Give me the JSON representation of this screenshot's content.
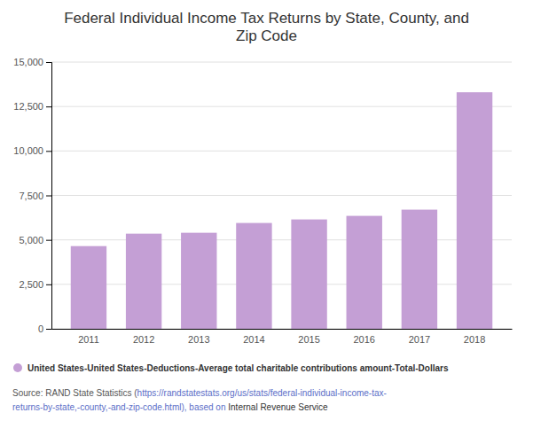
{
  "chart_data": {
    "type": "bar",
    "title": "Federal Individual Income Tax Returns by State, County, and\nZip Code",
    "categories": [
      "2011",
      "2012",
      "2013",
      "2014",
      "2015",
      "2016",
      "2017",
      "2018"
    ],
    "series": [
      {
        "name": "United States-United States-Deductions-Average total charitable contributions amount-Total-Dollars",
        "color": "#c49fd5",
        "values": [
          4650,
          5350,
          5400,
          5950,
          6150,
          6350,
          6700,
          13300
        ]
      }
    ],
    "ylim": [
      0,
      15000
    ],
    "yticks": [
      0,
      {
        "value": 2500,
        "label": "2,500"
      },
      {
        "value": 5000,
        "label": "5,000"
      },
      {
        "value": 7500,
        "label": "7,500"
      },
      {
        "value": 10000,
        "label": "10,000"
      },
      {
        "value": 12500,
        "label": "12,500"
      },
      {
        "value": 15000,
        "label": "15,000"
      }
    ],
    "grid": true,
    "legend": "bottom",
    "annotations": [
      "Source: RAND State Statistics (",
      "https://randstatestats.org/us/stats/federal-individual-income-tax-",
      "returns-by-state,-county,-and-zip-code.html), based on ",
      "Internal Revenue Service"
    ]
  }
}
